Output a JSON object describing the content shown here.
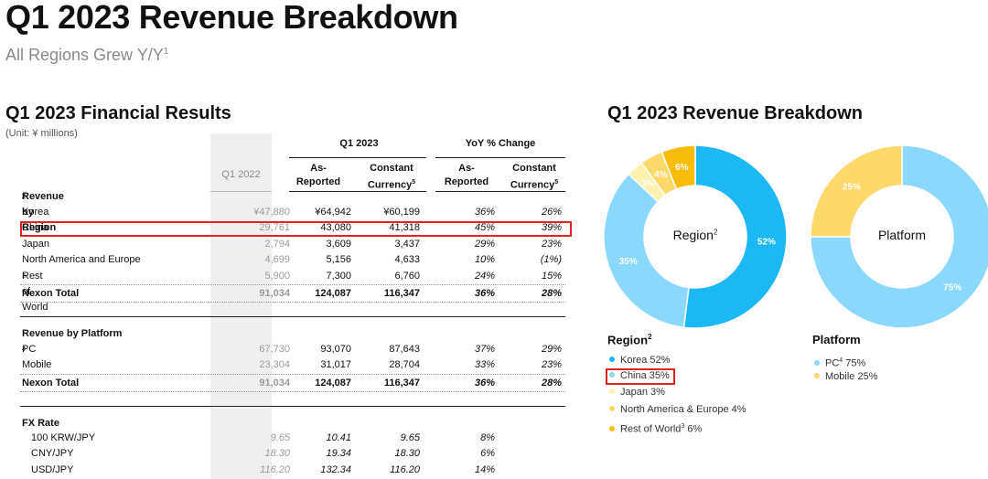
{
  "header": {
    "title": "Q1 2023 Revenue Breakdown",
    "subtitle": "All Regions Grew Y/Y",
    "subtitle_note": "1"
  },
  "results": {
    "title": "Q1 2023 Financial Results",
    "unit": "(Unit: ¥ millions)",
    "col_groups": {
      "q1_2023": "Q1 2023",
      "yoy": "YoY % Change"
    },
    "col_q1_2022": "Q1 2022",
    "col_as_reported_1": "As-",
    "col_as_reported_2": "Reported",
    "col_constant_1": "Constant",
    "col_constant_2": "Currency",
    "col_constant_note": "5",
    "region_section": {
      "label": "Revenue by Region",
      "note": "2"
    },
    "region_rows": [
      {
        "label": "Korea",
        "note": "",
        "q1_2022": "¥47,880",
        "as_reported": "¥64,942",
        "constant": "¥60,199",
        "yoy_reported": "36%",
        "yoy_constant": "26%"
      },
      {
        "label": "China",
        "note": "",
        "q1_2022": "29,761",
        "as_reported": "43,080",
        "constant": "41,318",
        "yoy_reported": "45%",
        "yoy_constant": "39%"
      },
      {
        "label": "Japan",
        "note": "",
        "q1_2022": "2,794",
        "as_reported": "3,609",
        "constant": "3,437",
        "yoy_reported": "29%",
        "yoy_constant": "23%"
      },
      {
        "label": "North America and Europe",
        "note": "",
        "q1_2022": "4,699",
        "as_reported": "5,156",
        "constant": "4,633",
        "yoy_reported": "10%",
        "yoy_constant": "(1%)"
      },
      {
        "label": "Rest of World",
        "note": "3",
        "q1_2022": "5,900",
        "as_reported": "7,300",
        "constant": "6,760",
        "yoy_reported": "24%",
        "yoy_constant": "15%"
      }
    ],
    "region_total": {
      "label": "Nexon Total",
      "q1_2022": "91,034",
      "as_reported": "124,087",
      "constant": "116,347",
      "yoy_reported": "36%",
      "yoy_constant": "28%"
    },
    "platform_section": {
      "label": "Revenue by Platform"
    },
    "platform_rows": [
      {
        "label": "PC",
        "note": "4",
        "q1_2022": "67,730",
        "as_reported": "93,070",
        "constant": "87,643",
        "yoy_reported": "37%",
        "yoy_constant": "29%"
      },
      {
        "label": "Mobile",
        "note": "",
        "q1_2022": "23,304",
        "as_reported": "31,017",
        "constant": "28,704",
        "yoy_reported": "33%",
        "yoy_constant": "23%"
      }
    ],
    "platform_total": {
      "label": "Nexon Total",
      "q1_2022": "91,034",
      "as_reported": "124,087",
      "constant": "116,347",
      "yoy_reported": "36%",
      "yoy_constant": "28%"
    },
    "fx_section": {
      "label": "FX Rate"
    },
    "fx_rows": [
      {
        "label": "100 KRW/JPY",
        "q1_2022": "9.65",
        "as_reported": "10.41",
        "constant": "9.65",
        "yoy_reported": "8%"
      },
      {
        "label": "CNY/JPY",
        "q1_2022": "18.30",
        "as_reported": "19.34",
        "constant": "18.30",
        "yoy_reported": "6%"
      },
      {
        "label": "USD/JPY",
        "q1_2022": "116.20",
        "as_reported": "132.34",
        "constant": "116.20",
        "yoy_reported": "14%"
      }
    ]
  },
  "breakdown": {
    "title": "Q1 2023 Revenue Breakdown",
    "region_center": "Region",
    "region_center_note": "2",
    "platform_center": "Platform",
    "region_legend_title": "Region",
    "region_legend_note": "2",
    "platform_legend_title": "Platform",
    "region_legend": [
      {
        "text": "Korea 52%",
        "note": "",
        "color": "#1cb8f4"
      },
      {
        "text": "China 35%",
        "note": "",
        "color": "#8ad8fb"
      },
      {
        "text": "Japan 3%",
        "note": "",
        "color": "#fdf1b0"
      },
      {
        "text": "North America & Europe 4%",
        "note": "",
        "color": "#fdd86a"
      },
      {
        "text": "Rest of World",
        "note": "3",
        "suffix": " 6%",
        "color": "#f8bc0a"
      }
    ],
    "platform_legend": [
      {
        "text": "PC",
        "note": "4",
        "suffix": " 75%",
        "color": "#8ad8fb"
      },
      {
        "text": "Mobile 25%",
        "note": "",
        "color": "#fdd86a"
      }
    ]
  },
  "chart_data": [
    {
      "type": "pie",
      "title": "Region",
      "categories": [
        "Korea",
        "China",
        "Japan",
        "North America & Europe",
        "Rest of World"
      ],
      "values": [
        52,
        35,
        3,
        4,
        6
      ],
      "labels": [
        "52%",
        "35%",
        "3%",
        "4%",
        "6%"
      ],
      "colors": [
        "#1cb8f4",
        "#8ad8fb",
        "#fdf1b0",
        "#fdd86a",
        "#f8bc0a"
      ]
    },
    {
      "type": "pie",
      "title": "Platform",
      "categories": [
        "PC",
        "Mobile"
      ],
      "values": [
        75,
        25
      ],
      "labels": [
        "75%",
        "25%"
      ],
      "colors": [
        "#8ad8fb",
        "#fdd86a"
      ]
    }
  ]
}
